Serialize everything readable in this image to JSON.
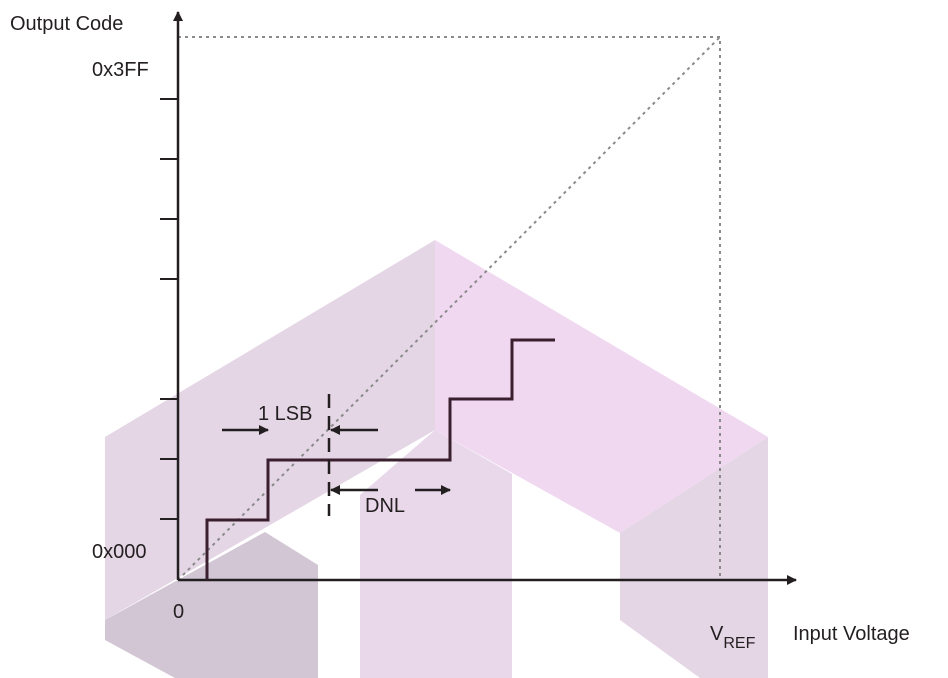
{
  "axes": {
    "y_label": "Output Code",
    "y_top": "0x3FF",
    "y_bottom": "0x000",
    "x_origin": "0",
    "x_end": {
      "main": "V",
      "subscript": "REF"
    },
    "x_label": "Input Voltage"
  },
  "annotations": {
    "lsb": "1 LSB",
    "dnl": "DNL"
  }
}
